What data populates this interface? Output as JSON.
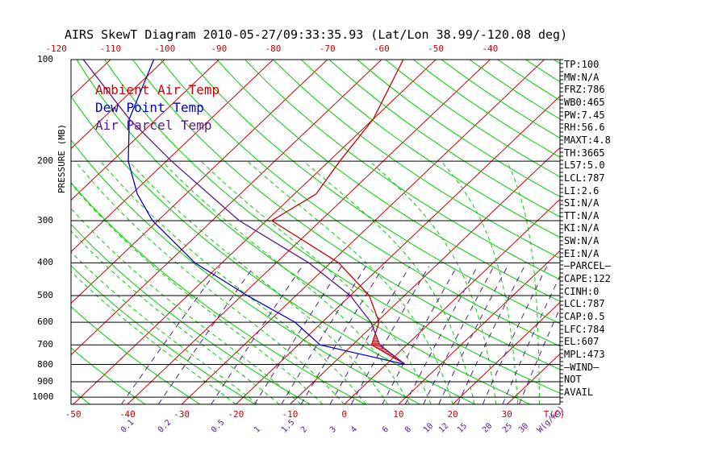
{
  "title": "AIRS SkewT Diagram 2010-05-27/09:33:35.93 (Lat/Lon 38.99/-120.08 deg)",
  "legend": [
    {
      "label": "Ambient Air Temp",
      "color": "#cc0000"
    },
    {
      "label": "Dew Point Temp",
      "color": "#0000cc"
    },
    {
      "label": "Air Parcel Temp",
      "color": "#551a8b"
    }
  ],
  "colors": {
    "temp": "#cc0000",
    "dew": "#0000cc",
    "parcel": "#551a8b",
    "isotherm": "#cc0000",
    "dry_adiabat": "#00cc00",
    "moist_adiabat": "#00cc00",
    "mixing_ratio": "#551a8b",
    "isobar": "#000000"
  },
  "stats": [
    "TP:100",
    "MW:N/A",
    "FRZ:786",
    "WB0:465",
    "PW:7.45",
    "RH:56.6",
    "MAXT:4.8",
    "TH:3665",
    "L57:5.0",
    "LCL:787",
    "LI:2.6",
    "SI:N/A",
    "TT:N/A",
    "KI:N/A",
    "SW:N/A",
    "EI:N/A",
    "—PARCEL—",
    "CAPE:122",
    "CINH:0",
    "LCL:787",
    "CAP:0.5",
    "LFC:784",
    "EL:607",
    "MPL:473",
    "—WIND—",
    "NOT",
    "AVAIL"
  ],
  "chart_data": {
    "type": "line",
    "title": "AIRS SkewT Diagram 2010-05-27/09:33:35.93 (Lat/Lon 38.99/-120.08 deg)",
    "ylabel": "PRESSURE (MB)",
    "y_scale": "log",
    "ylim": [
      1050,
      100
    ],
    "pressure_ticks": [
      100,
      200,
      300,
      400,
      500,
      600,
      700,
      800,
      900,
      1000
    ],
    "pressure_labels": [
      "100",
      "200",
      "300",
      "400",
      "500",
      "600",
      "700",
      "800",
      "900",
      "1000"
    ],
    "temp_ticks_bottom": [
      -50,
      -40,
      -30,
      -20,
      -10,
      0,
      10,
      20,
      30
    ],
    "temp_ticks_top": [
      -120,
      -110,
      -100,
      -90,
      -80,
      -70,
      -60,
      -50,
      -40
    ],
    "xunit_label": "T(C)",
    "mixing_ratio_unit": "W(g/kg)",
    "mixing_ratio_ticks": [
      0.1,
      0.2,
      0.5,
      1,
      1.5,
      2,
      3,
      4,
      6,
      8,
      10,
      12,
      15,
      20,
      25,
      30
    ],
    "mixing_ratio_labels": [
      "0.1",
      "0.2",
      "0.5",
      "1",
      "1.5",
      "2",
      "3",
      "4",
      "6",
      "8",
      "10",
      "12",
      "15",
      "20",
      "25",
      "30"
    ],
    "grid": true,
    "series": [
      {
        "name": "Ambient Air Temp",
        "color": "#cc0000",
        "points": [
          [
            800,
            3.5
          ],
          [
            700,
            -6.5
          ],
          [
            600,
            -9.5
          ],
          [
            500,
            -16.5
          ],
          [
            400,
            -28.5
          ],
          [
            350,
            -38
          ],
          [
            300,
            -49
          ],
          [
            250,
            -46
          ],
          [
            200,
            -48
          ],
          [
            150,
            -50
          ],
          [
            100,
            -56
          ]
        ]
      },
      {
        "name": "Dew Point Temp",
        "color": "#0000cc",
        "points": [
          [
            800,
            3.5
          ],
          [
            700,
            -16
          ],
          [
            600,
            -25
          ],
          [
            500,
            -39
          ],
          [
            400,
            -55
          ],
          [
            300,
            -71
          ],
          [
            250,
            -79
          ],
          [
            200,
            -87
          ],
          [
            150,
            -95
          ],
          [
            100,
            -102
          ]
        ]
      },
      {
        "name": "Air Parcel Temp",
        "color": "#551a8b",
        "points": [
          [
            800,
            3.5
          ],
          [
            700,
            -5
          ],
          [
            600,
            -11
          ],
          [
            500,
            -20
          ],
          [
            400,
            -34
          ],
          [
            300,
            -55
          ],
          [
            200,
            -79
          ],
          [
            150,
            -95
          ],
          [
            100,
            -115
          ]
        ]
      }
    ]
  }
}
